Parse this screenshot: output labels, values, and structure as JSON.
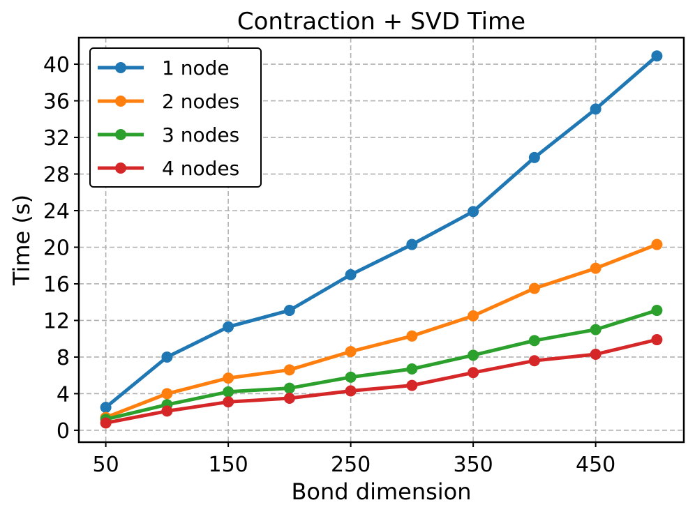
{
  "chart_data": {
    "type": "line",
    "title": "Contraction + SVD Time",
    "xlabel": "Bond dimension",
    "ylabel": "Time (s)",
    "x": [
      50,
      100,
      150,
      200,
      250,
      300,
      350,
      400,
      450,
      500
    ],
    "xticks": [
      50,
      150,
      250,
      350,
      450
    ],
    "yticks": [
      0,
      4,
      8,
      12,
      16,
      20,
      24,
      28,
      32,
      36,
      40
    ],
    "xlim": [
      28,
      522
    ],
    "ylim": [
      -1.3,
      42.9
    ],
    "grid": true,
    "legend_position": "top-left",
    "series": [
      {
        "name": "1 node",
        "color": "#1f77b4",
        "values": [
          2.5,
          8.0,
          11.3,
          13.1,
          17.0,
          20.3,
          23.9,
          29.8,
          35.1,
          40.9
        ]
      },
      {
        "name": "2 nodes",
        "color": "#ff7f0e",
        "values": [
          1.4,
          4.0,
          5.7,
          6.6,
          8.6,
          10.3,
          12.5,
          15.5,
          17.7,
          20.3
        ]
      },
      {
        "name": "3 nodes",
        "color": "#2ca02c",
        "values": [
          1.2,
          2.8,
          4.2,
          4.6,
          5.8,
          6.7,
          8.2,
          9.8,
          11.0,
          13.1
        ]
      },
      {
        "name": "4 nodes",
        "color": "#d62728",
        "values": [
          0.8,
          2.1,
          3.1,
          3.5,
          4.3,
          4.9,
          6.3,
          7.6,
          8.3,
          9.9
        ]
      }
    ]
  }
}
